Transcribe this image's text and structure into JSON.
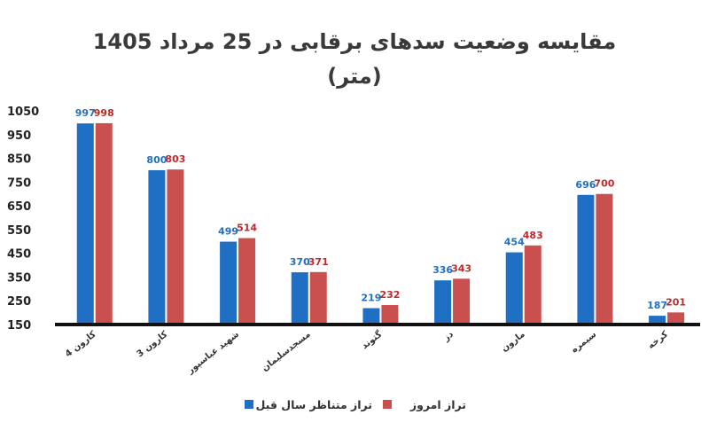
{
  "chart_data": {
    "type": "bar",
    "title_line1": "مقایسه وضعیت سدهای برقابی در 25 مرداد 1405",
    "title_line2": "(متر)",
    "categories": [
      "کارون 4",
      "کارون 3",
      "شهید عباسپور",
      "مسجدسلیمان",
      "گتوند",
      "دز",
      "مارون",
      "سیمره",
      "کرخه"
    ],
    "series": [
      {
        "name": "تراز متناظر سال قبل",
        "color": "#1f6fc4",
        "label_color": "#1f6fc4",
        "values": [
          997,
          800,
          499,
          370,
          219,
          336,
          454,
          696,
          187
        ]
      },
      {
        "name": "تراز امروز",
        "color": "#c9504f",
        "label_color": "#c0282a",
        "values": [
          998,
          803,
          514,
          371,
          232,
          343,
          483,
          700,
          201
        ]
      }
    ],
    "yticks": [
      150,
      250,
      350,
      450,
      550,
      650,
      750,
      850,
      950,
      1050
    ],
    "ylim": [
      150,
      1050
    ],
    "grid": false,
    "legend_position": "bottom"
  }
}
